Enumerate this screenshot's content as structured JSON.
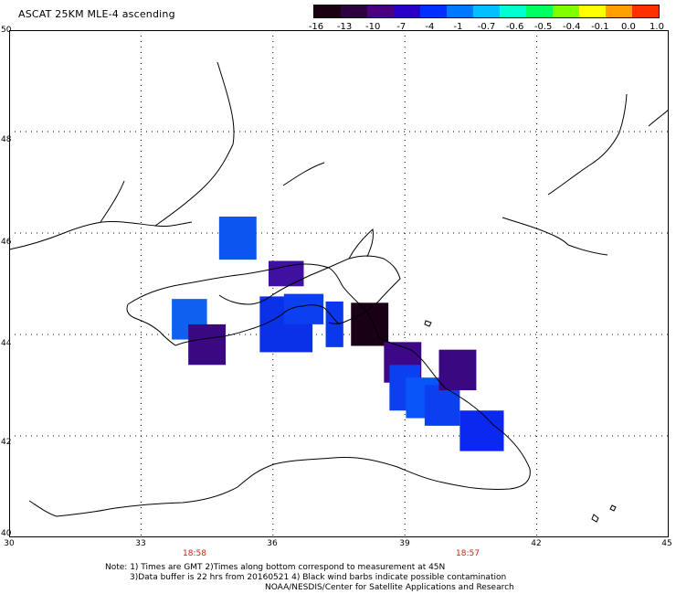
{
  "title": "ASCAT 25KM MLE-4 ascending",
  "colorbar": {
    "labels": [
      "-16",
      "-13",
      "-10",
      "-7",
      "-4",
      "-1",
      "-0.7",
      "-0.6",
      "-0.5",
      "-0.4",
      "-0.1",
      "0.0",
      "1.0"
    ],
    "colors": [
      "#1a0010",
      "#2e0040",
      "#4b0080",
      "#2800c8",
      "#0030ff",
      "#0078ff",
      "#00c0ff",
      "#00ffd0",
      "#00ff60",
      "#80ff00",
      "#ffff00",
      "#ffa000",
      "#ff3000"
    ]
  },
  "axes": {
    "lat_labels": [
      "50",
      "48",
      "46",
      "44",
      "42",
      "40"
    ],
    "lon_labels": [
      "30",
      "33",
      "36",
      "39",
      "42",
      "45"
    ],
    "times": [
      "18:58",
      "18:57"
    ]
  },
  "notes": [
    "Note: 1) Times are GMT 2)Times along bottom correspond to measurement at 45N",
    "3)Data buffer is 22 hrs from 20160521 4) Black wind barbs indicate possible contamination",
    "NOAA/NESDIS/Center for Satellite Applications and Research"
  ],
  "map": {
    "region": {
      "lon_min": 30,
      "lon_max": 45,
      "lat_min": 40,
      "lat_max": 50
    },
    "cells": [
      {
        "lon": 35.2,
        "lat": 45.9,
        "w": 0.85,
        "h": 0.85,
        "color": "#0c55f0"
      },
      {
        "lon": 36.3,
        "lat": 45.2,
        "w": 0.8,
        "h": 0.5,
        "color": "#4010a0"
      },
      {
        "lon": 34.1,
        "lat": 44.3,
        "w": 0.8,
        "h": 0.8,
        "color": "#1060f0"
      },
      {
        "lon": 34.5,
        "lat": 43.8,
        "w": 0.85,
        "h": 0.8,
        "color": "#3a0880"
      },
      {
        "lon": 36.3,
        "lat": 44.2,
        "w": 1.2,
        "h": 1.1,
        "color": "#0a30e8"
      },
      {
        "lon": 36.7,
        "lat": 44.5,
        "w": 0.9,
        "h": 0.6,
        "color": "#0a40f0"
      },
      {
        "lon": 37.4,
        "lat": 44.2,
        "w": 0.4,
        "h": 0.9,
        "color": "#0a38ec"
      },
      {
        "lon": 38.2,
        "lat": 44.2,
        "w": 0.85,
        "h": 0.85,
        "color": "#1a0014"
      },
      {
        "lon": 38.95,
        "lat": 43.45,
        "w": 0.85,
        "h": 0.8,
        "color": "#3c0888"
      },
      {
        "lon": 39.0,
        "lat": 42.95,
        "w": 0.7,
        "h": 0.9,
        "color": "#0a40f0"
      },
      {
        "lon": 39.4,
        "lat": 42.75,
        "w": 0.75,
        "h": 0.8,
        "color": "#0a55f8"
      },
      {
        "lon": 39.85,
        "lat": 42.6,
        "w": 0.8,
        "h": 0.8,
        "color": "#0a40f0"
      },
      {
        "lon": 40.2,
        "lat": 43.3,
        "w": 0.85,
        "h": 0.8,
        "color": "#3a0880"
      },
      {
        "lon": 40.75,
        "lat": 42.1,
        "w": 1.0,
        "h": 0.8,
        "color": "#0a28f0"
      }
    ]
  }
}
